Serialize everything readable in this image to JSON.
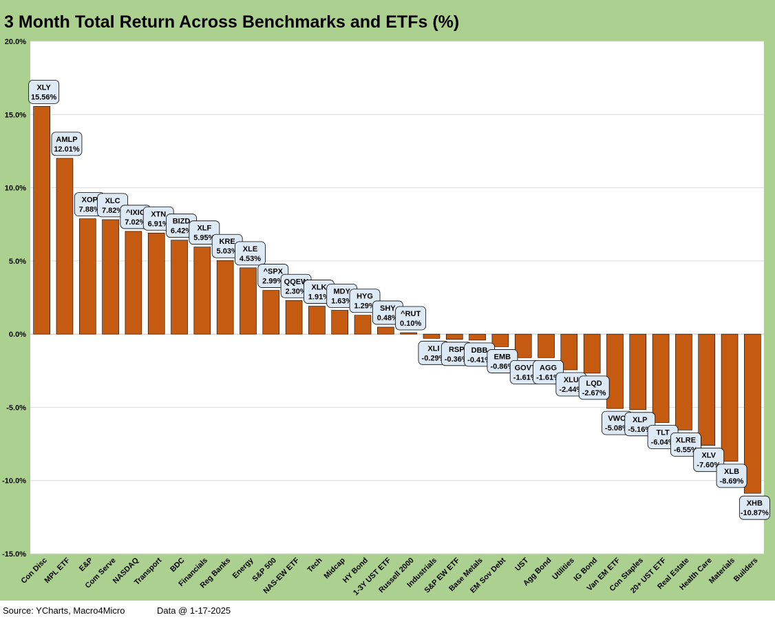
{
  "title": "3 Month Total Return Across Benchmarks and ETFs (%)",
  "footer": {
    "source": "Source: YCharts, Macro4Micro",
    "date": "Data @ 1-17-2025"
  },
  "colors": {
    "frame": "#acd08f",
    "plot_bg": "#ffffff",
    "bar": "#c55a11",
    "bar_border": "#000000",
    "label_fill": "#dde9f5",
    "gridline": "#d9d9d9"
  },
  "chart_data": {
    "type": "bar",
    "title": "3 Month Total Return Across Benchmarks and ETFs (%)",
    "xlabel": "",
    "ylabel": "",
    "ylim": [
      -15,
      20
    ],
    "yticks": [
      20,
      15,
      10,
      5,
      0,
      -5,
      -10,
      -15
    ],
    "ytick_labels": [
      "20.0%",
      "15.0%",
      "10.0%",
      "5.0%",
      "0.0%",
      "-5.0%",
      "-10.0%",
      "-15.0%"
    ],
    "grid": true,
    "categories": [
      "Con Disc",
      "MPL ETF",
      "E&P",
      "Com Serve",
      "NASDAQ",
      "Transport",
      "BDC",
      "Financials",
      "Reg Banks",
      "Energy",
      "S&P 500",
      "NAS-EW ETF",
      "Tech",
      "Midcap",
      "HY Bond",
      "1-3Y UST ETF",
      "Russell 2000",
      "Industrials",
      "S&P EW ETF",
      "Base Metals",
      "EM Sov Debt",
      "UST",
      "Agg Bond",
      "Utilities",
      "IG Bond",
      "Van EM ETF",
      "Con Staples",
      "20+ UST ETF",
      "Real Estate",
      "Health Care",
      "Materials",
      "Builders"
    ],
    "tickers": [
      "XLY",
      "AMLP",
      "XOP",
      "XLC",
      "^IXIC",
      "XTN",
      "BIZD",
      "XLF",
      "KRE",
      "XLE",
      "^SPX",
      "QQEW",
      "XLK",
      "MDY",
      "HYG",
      "SHY",
      "^RUT",
      "XLI",
      "RSP",
      "DBB",
      "EMB",
      "GOVT",
      "AGG",
      "XLU",
      "LQD",
      "VWO",
      "XLP",
      "TLT",
      "XLRE",
      "XLV",
      "XLB",
      "XHB"
    ],
    "values": [
      15.56,
      12.01,
      7.88,
      7.82,
      7.02,
      6.91,
      6.42,
      5.95,
      5.03,
      4.53,
      2.99,
      2.3,
      1.91,
      1.63,
      1.29,
      0.48,
      0.1,
      -0.29,
      -0.36,
      -0.41,
      -0.86,
      -1.61,
      -1.61,
      -2.44,
      -2.67,
      -5.08,
      -5.16,
      -6.04,
      -6.55,
      -7.6,
      -8.69,
      -10.87
    ],
    "value_labels": [
      "15.56%",
      "12.01%",
      "7.88%",
      "7.82%",
      "7.02%",
      "6.91%",
      "6.42%",
      "5.95%",
      "5.03%",
      "4.53%",
      "2.99%",
      "2.30%",
      "1.91%",
      "1.63%",
      "1.29%",
      "0.48%",
      "0.10%",
      "-0.29%",
      "-0.36%",
      "-0.41%",
      "-0.86%",
      "-1.61%",
      "-1.61%",
      "-2.44%",
      "-2.67%",
      "-5.08%",
      "-5.16%",
      "-6.04%",
      "-6.55%",
      "-7.60%",
      "-8.69%",
      "-10.87%"
    ]
  }
}
